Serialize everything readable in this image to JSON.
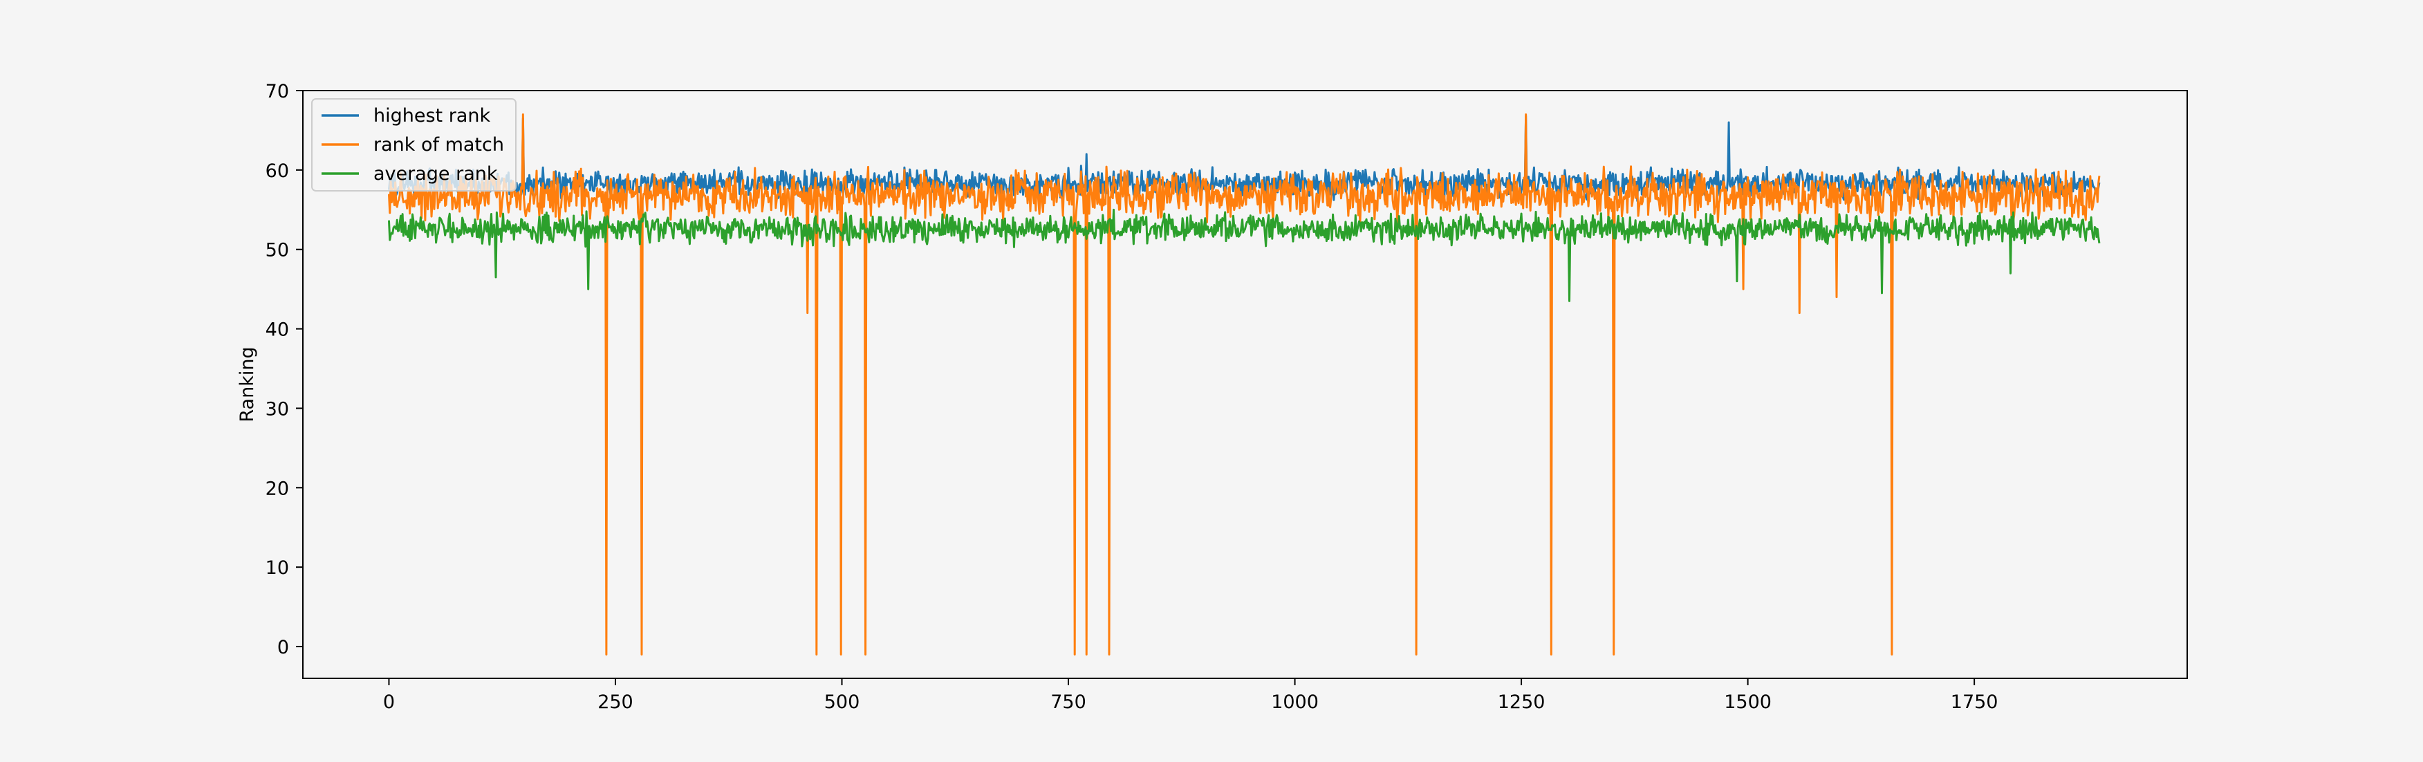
{
  "colors": {
    "figure_bg": "#f5f5f5",
    "axes_bg": "#f5f5f5",
    "highest_rank": "#1f77b4",
    "rank_of_match": "#ff7f0e",
    "average_rank": "#2ca02c"
  },
  "chart_data": {
    "type": "line",
    "title": "",
    "xlabel": "",
    "ylabel": "Ranking",
    "xlim": [
      -95,
      1985
    ],
    "ylim": [
      -4,
      70
    ],
    "xticks": [
      0,
      250,
      500,
      750,
      1000,
      1250,
      1500,
      1750
    ],
    "yticks": [
      0,
      10,
      20,
      30,
      40,
      50,
      60,
      70
    ],
    "xtick_labels": [
      "0",
      "250",
      "500",
      "750",
      "1000",
      "1250",
      "1500",
      "1750"
    ],
    "ytick_labels": [
      "0",
      "10",
      "20",
      "30",
      "40",
      "50",
      "60",
      "70"
    ],
    "grid": false,
    "legend_position": "top-left",
    "x_count": 1889,
    "series": [
      {
        "name": "highest rank",
        "color_key": "highest_rank",
        "base": 58.3,
        "noise": 1.5,
        "spikes": [
          {
            "x": 148,
            "y": 66.5
          },
          {
            "x": 770,
            "y": 62
          },
          {
            "x": 1255,
            "y": 66.8
          },
          {
            "x": 1479,
            "y": 66
          }
        ]
      },
      {
        "name": "rank of match",
        "color_key": "rank_of_match",
        "base": 56.8,
        "noise": 2.5,
        "spikes": [
          {
            "x": 148,
            "y": 67
          },
          {
            "x": 240,
            "y": -1
          },
          {
            "x": 279,
            "y": -1
          },
          {
            "x": 472,
            "y": -1
          },
          {
            "x": 499,
            "y": -1
          },
          {
            "x": 526,
            "y": -1
          },
          {
            "x": 757,
            "y": -1
          },
          {
            "x": 770,
            "y": -1
          },
          {
            "x": 795,
            "y": -1
          },
          {
            "x": 1134,
            "y": -1
          },
          {
            "x": 1255,
            "y": 67
          },
          {
            "x": 1283,
            "y": -1
          },
          {
            "x": 1352,
            "y": -1
          },
          {
            "x": 1659,
            "y": -1
          },
          {
            "x": 1495,
            "y": 45
          },
          {
            "x": 1557,
            "y": 42
          },
          {
            "x": 1598,
            "y": 44
          },
          {
            "x": 462,
            "y": 42
          }
        ]
      },
      {
        "name": "average rank",
        "color_key": "average_rank",
        "base": 52.6,
        "noise": 1.6,
        "spikes": [
          {
            "x": 118,
            "y": 46.5
          },
          {
            "x": 220,
            "y": 45
          },
          {
            "x": 1303,
            "y": 43.5
          },
          {
            "x": 1488,
            "y": 46
          },
          {
            "x": 1648,
            "y": 44.5
          },
          {
            "x": 1790,
            "y": 47
          }
        ]
      }
    ]
  }
}
